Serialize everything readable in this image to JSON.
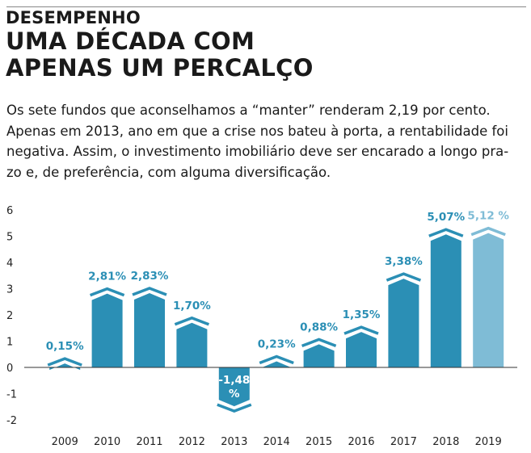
{
  "header": {
    "kicker": "DESEMPENHO",
    "title_lines": [
      "UMA DÉCADA COM",
      "APENAS UM PERCALÇO"
    ]
  },
  "intro_lines": [
    "Os sete fundos que aconselhamos a “manter” renderam 2,19 por cento.",
    "Apenas em 2013, ano em que a crise nos bateu à porta, a rentabilidade foi",
    "negativa. Assim, o investimento imobiliário deve ser encarado a longo pra-",
    "zo e, de preferência, com alguma diversificação."
  ],
  "colors": {
    "bar": "#2b8fb5",
    "bar_highlight": "#7fbcd6",
    "label": "#2b8fb5",
    "label_highlight": "#7fbcd6",
    "zero_line": "#333333"
  },
  "chart_data": {
    "type": "bar",
    "categories": [
      "2009",
      "2010",
      "2011",
      "2012",
      "2013",
      "2014",
      "2015",
      "2016",
      "2017",
      "2018",
      "2019"
    ],
    "values": [
      0.15,
      2.81,
      2.83,
      1.7,
      -1.48,
      0.23,
      0.88,
      1.35,
      3.38,
      5.07,
      5.12
    ],
    "value_labels": [
      "0,15%",
      "2,81%",
      "2,83%",
      "1,70%",
      "-1,48 %",
      "0,23%",
      "0,88%",
      "1,35%",
      "3,38%",
      "5,07%",
      "5,12 %"
    ],
    "highlight_category": "2019",
    "y_ticks": [
      "6",
      "5",
      "4",
      "3",
      "2",
      "1",
      "0",
      "-1",
      "-2"
    ],
    "ylim": [
      -2,
      6
    ],
    "grid": false
  }
}
